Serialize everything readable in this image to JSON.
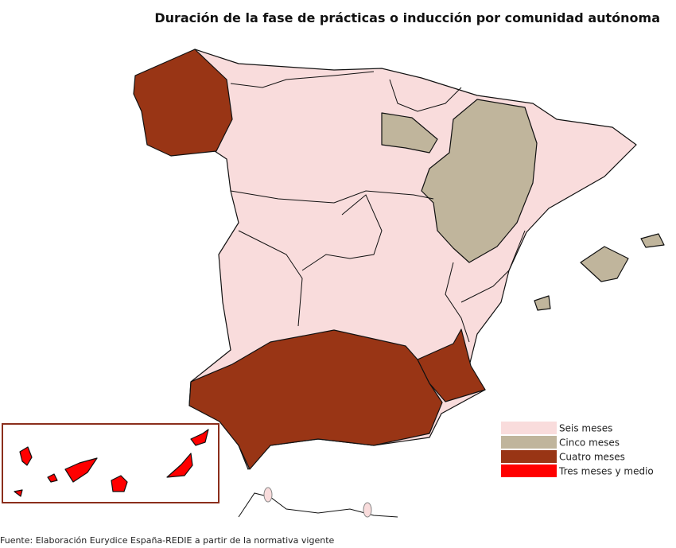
{
  "title": "Duración de la fase de prácticas o inducción por comunidad autónoma",
  "legend": [
    {
      "label": "Seis meses",
      "color": "#f9dcdc"
    },
    {
      "label": "Cinco meses",
      "color": "#c0b59c"
    },
    {
      "label": "Cuatro meses",
      "color": "#993515"
    },
    {
      "label": "Tres meses y medio",
      "color": "#ff0000"
    }
  ],
  "source": "Fuente: Elaboración Eurydice España-REDIE a partir de la normativa vigente"
}
